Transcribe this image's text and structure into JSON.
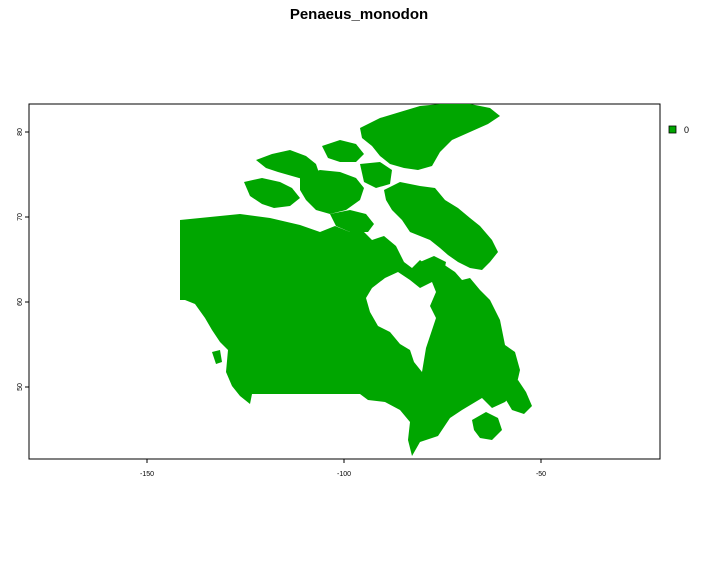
{
  "title": "Penaeus_monodon",
  "colors": {
    "land": "#00a600",
    "frame": "#000000",
    "background": "#ffffff"
  },
  "map": {
    "region": "Canada",
    "projection": "longitude-latitude",
    "x_ticks": [
      "-150",
      "-100",
      "-50"
    ],
    "y_ticks": [
      "50",
      "60",
      "70",
      "80"
    ],
    "legend": [
      {
        "label": "0",
        "color": "#00a600"
      }
    ]
  },
  "chart_data": {
    "type": "heatmap",
    "title": "Penaeus_monodon",
    "xlabel": "",
    "ylabel": "",
    "xlim": [
      -180,
      -20
    ],
    "ylim": [
      41,
      83
    ],
    "x_ticks": [
      -150,
      -100,
      -50
    ],
    "y_ticks": [
      50,
      60,
      70,
      80
    ],
    "value_classes": [
      0
    ],
    "grid": false,
    "legend_position": "right"
  }
}
